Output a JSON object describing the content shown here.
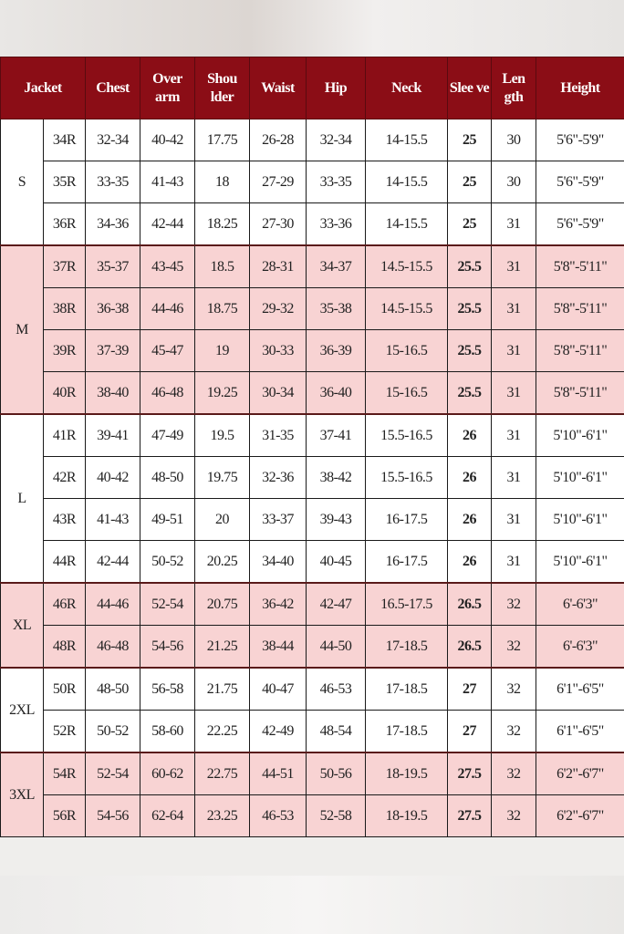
{
  "colors": {
    "header_bg": "#8b0d16",
    "pink_row": "#f8d3d3",
    "white_row": "#ffffff"
  },
  "headers": [
    "Jacket",
    "Chest",
    "Over arm",
    "Shou lder",
    "Waist",
    "Hip",
    "Neck",
    "Slee ve",
    "Len gth",
    "Height"
  ],
  "groups": [
    {
      "size": "S",
      "shade": "white",
      "rows": [
        [
          "34R",
          "32-34",
          "40-42",
          "17.75",
          "26-28",
          "32-34",
          "14-15.5",
          "25",
          "30",
          "5'6\"-5'9\""
        ],
        [
          "35R",
          "33-35",
          "41-43",
          "18",
          "27-29",
          "33-35",
          "14-15.5",
          "25",
          "30",
          "5'6\"-5'9\""
        ],
        [
          "36R",
          "34-36",
          "42-44",
          "18.25",
          "27-30",
          "33-36",
          "14-15.5",
          "25",
          "31",
          "5'6\"-5'9\""
        ]
      ]
    },
    {
      "size": "M",
      "shade": "pink",
      "rows": [
        [
          "37R",
          "35-37",
          "43-45",
          "18.5",
          "28-31",
          "34-37",
          "14.5-15.5",
          "25.5",
          "31",
          "5'8\"-5'11\""
        ],
        [
          "38R",
          "36-38",
          "44-46",
          "18.75",
          "29-32",
          "35-38",
          "14.5-15.5",
          "25.5",
          "31",
          "5'8\"-5'11\""
        ],
        [
          "39R",
          "37-39",
          "45-47",
          "19",
          "30-33",
          "36-39",
          "15-16.5",
          "25.5",
          "31",
          "5'8\"-5'11\""
        ],
        [
          "40R",
          "38-40",
          "46-48",
          "19.25",
          "30-34",
          "36-40",
          "15-16.5",
          "25.5",
          "31",
          "5'8\"-5'11\""
        ]
      ]
    },
    {
      "size": "L",
      "shade": "white",
      "rows": [
        [
          "41R",
          "39-41",
          "47-49",
          "19.5",
          "31-35",
          "37-41",
          "15.5-16.5",
          "26",
          "31",
          "5'10\"-6'1\""
        ],
        [
          "42R",
          "40-42",
          "48-50",
          "19.75",
          "32-36",
          "38-42",
          "15.5-16.5",
          "26",
          "31",
          "5'10\"-6'1\""
        ],
        [
          "43R",
          "41-43",
          "49-51",
          "20",
          "33-37",
          "39-43",
          "16-17.5",
          "26",
          "31",
          "5'10\"-6'1\""
        ],
        [
          "44R",
          "42-44",
          "50-52",
          "20.25",
          "34-40",
          "40-45",
          "16-17.5",
          "26",
          "31",
          "5'10\"-6'1\""
        ]
      ]
    },
    {
      "size": "XL",
      "shade": "pink",
      "rows": [
        [
          "46R",
          "44-46",
          "52-54",
          "20.75",
          "36-42",
          "42-47",
          "16.5-17.5",
          "26.5",
          "32",
          "6'-6'3\""
        ],
        [
          "48R",
          "46-48",
          "54-56",
          "21.25",
          "38-44",
          "44-50",
          "17-18.5",
          "26.5",
          "32",
          "6'-6'3\""
        ]
      ]
    },
    {
      "size": "2XL",
      "shade": "white",
      "rows": [
        [
          "50R",
          "48-50",
          "56-58",
          "21.75",
          "40-47",
          "46-53",
          "17-18.5",
          "27",
          "32",
          "6'1\"-6'5\""
        ],
        [
          "52R",
          "50-52",
          "58-60",
          "22.25",
          "42-49",
          "48-54",
          "17-18.5",
          "27",
          "32",
          "6'1\"-6'5\""
        ]
      ]
    },
    {
      "size": "3XL",
      "shade": "pink",
      "rows": [
        [
          "54R",
          "52-54",
          "60-62",
          "22.75",
          "44-51",
          "50-56",
          "18-19.5",
          "27.5",
          "32",
          "6'2\"-6'7\""
        ],
        [
          "56R",
          "54-56",
          "62-64",
          "23.25",
          "46-53",
          "52-58",
          "18-19.5",
          "27.5",
          "32",
          "6'2\"-6'7\""
        ]
      ]
    }
  ]
}
